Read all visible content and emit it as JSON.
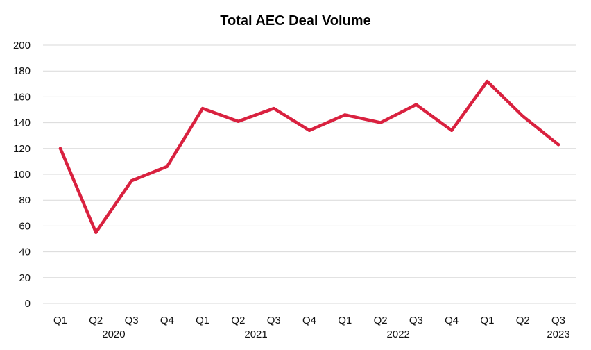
{
  "chart_data": {
    "type": "line",
    "title": "Total AEC Deal Volume",
    "xlabel": "",
    "ylabel": "",
    "ylim": [
      0,
      200
    ],
    "yticks": [
      0,
      20,
      40,
      60,
      80,
      100,
      120,
      140,
      160,
      180,
      200
    ],
    "grid": true,
    "legend": "none",
    "categories": [
      "Q1",
      "Q2",
      "Q3",
      "Q4",
      "Q1",
      "Q2",
      "Q3",
      "Q4",
      "Q1",
      "Q2",
      "Q3",
      "Q4",
      "Q1",
      "Q2",
      "Q3"
    ],
    "year_groups": [
      {
        "label": "2020",
        "start": 0,
        "end": 3
      },
      {
        "label": "2021",
        "start": 4,
        "end": 7
      },
      {
        "label": "2022",
        "start": 8,
        "end": 11
      },
      {
        "label": "2023",
        "start": 12,
        "end": 14
      }
    ],
    "series": [
      {
        "name": "Total AEC Deal Volume",
        "color": "#d9213f",
        "values": [
          120,
          55,
          95,
          106,
          151,
          141,
          151,
          134,
          146,
          140,
          154,
          134,
          172,
          145,
          123
        ]
      }
    ]
  }
}
